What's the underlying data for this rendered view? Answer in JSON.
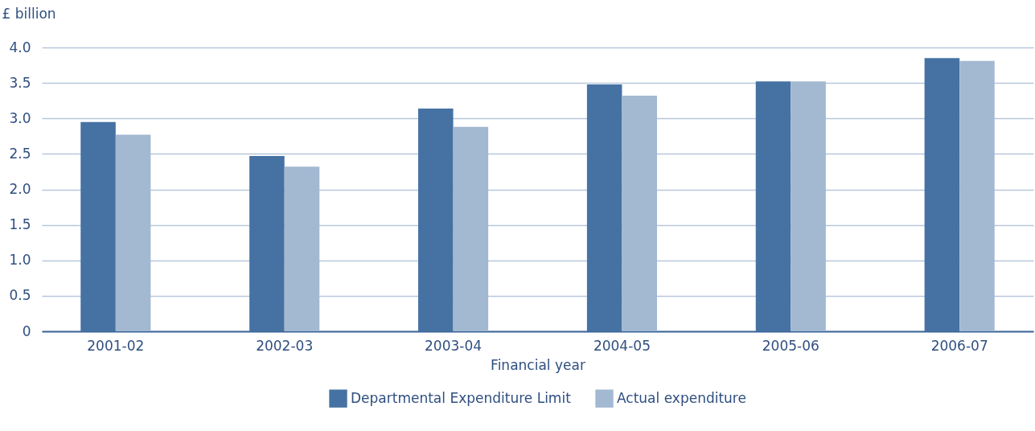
{
  "chart_data": {
    "type": "bar",
    "ylabel": "£ billion",
    "xlabel": "Financial year",
    "categories": [
      "2001-02",
      "2002-03",
      "2003-04",
      "2004-05",
      "2005-06",
      "2006-07"
    ],
    "series": [
      {
        "name": "Departmental Expenditure Limit",
        "color": "#4572a3",
        "values": [
          2.95,
          2.47,
          3.14,
          3.48,
          3.52,
          3.85
        ]
      },
      {
        "name": "Actual expenditure",
        "color": "#a3b8d1",
        "values": [
          2.77,
          2.32,
          2.88,
          3.32,
          3.52,
          3.81
        ]
      }
    ],
    "ylim": [
      0,
      4
    ],
    "yticks": [
      0,
      0.5,
      {
        "value": 1,
        "label": "1.0"
      },
      1.5,
      {
        "value": 2,
        "label": "2.0"
      },
      2.5,
      {
        "value": 3,
        "label": "3.0"
      },
      3.5,
      {
        "value": 4,
        "label": "4.0"
      }
    ],
    "grid": "y",
    "legend": "bottom"
  }
}
